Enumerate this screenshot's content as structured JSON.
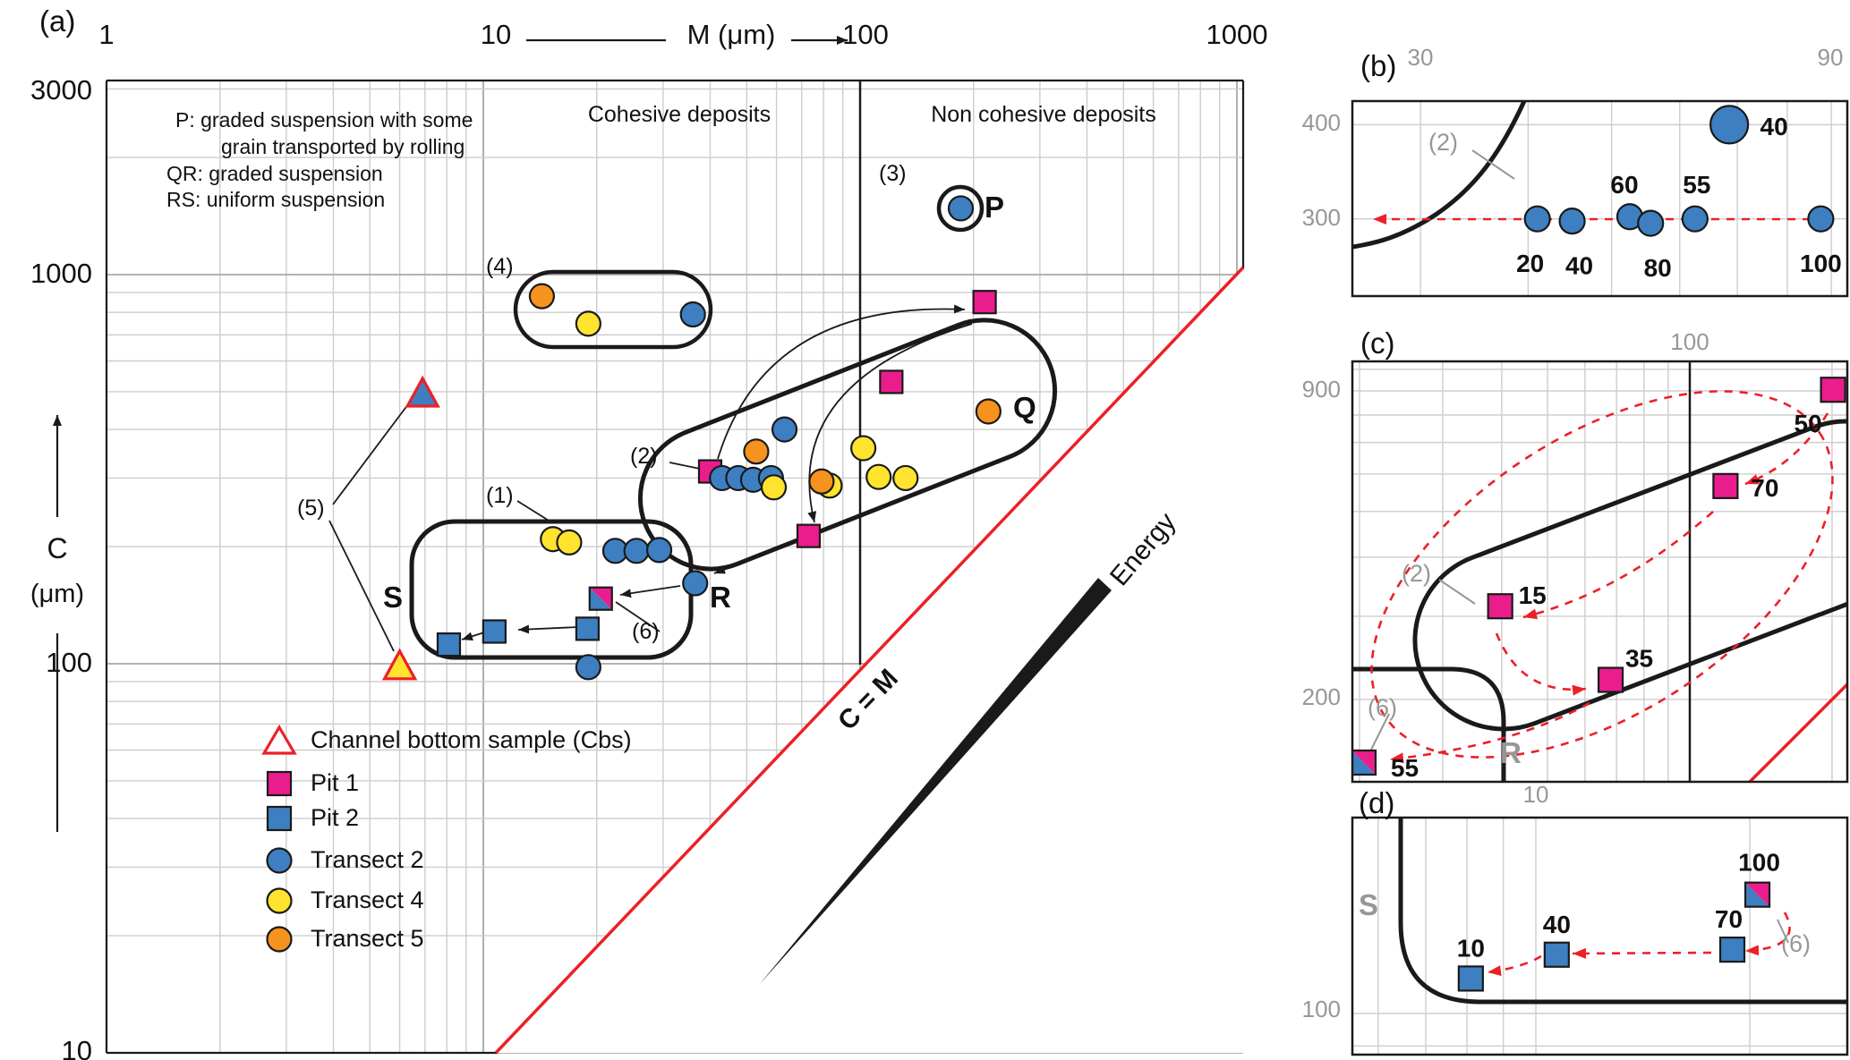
{
  "chart_data": [
    {
      "panel": "a",
      "type": "scatter",
      "xscale": "log",
      "yscale": "log",
      "xlabel": "M (μm)",
      "ylabel": "C (μm)",
      "xlim": [
        1,
        1040
      ],
      "ylim": [
        10,
        3160
      ],
      "x_ticks": [
        1,
        10,
        100,
        1000
      ],
      "y_ticks": [
        3000,
        1000,
        100,
        10
      ],
      "reference_line": {
        "label": "C = M"
      },
      "cohesive_boundary_M": 100,
      "series": [
        {
          "name": "Pit 1",
          "marker": "square",
          "color": "#EA1D8D",
          "points_MC": [
            [
              214,
              850
            ],
            [
              121,
              530
            ],
            [
              40,
              312
            ],
            [
              73,
              213
            ]
          ]
        },
        {
          "name": "Pit 1 + Pit 2 overlap",
          "marker": "square-split",
          "colors": [
            "#EA1D8D",
            "#3D7FC1"
          ],
          "points_MC": [
            [
              20.5,
              147
            ]
          ]
        },
        {
          "name": "Pit 2",
          "marker": "square",
          "color": "#3D7FC1",
          "points_MC": [
            [
              8.1,
              112
            ],
            [
              10.7,
              121
            ],
            [
              18.9,
              123
            ]
          ]
        },
        {
          "name": "Transect 2",
          "marker": "circle",
          "color": "#3D7FC1",
          "points_MC": [
            [
              185,
              1480
            ],
            [
              36,
              790
            ],
            [
              63,
              400
            ],
            [
              43,
              300
            ],
            [
              47.5,
              300
            ],
            [
              52,
              297
            ],
            [
              58,
              300
            ],
            [
              22.4,
              195
            ],
            [
              25.5,
              195
            ],
            [
              29.3,
              196
            ],
            [
              36.5,
              161
            ],
            [
              19,
              98
            ]
          ]
        },
        {
          "name": "Transect 4",
          "marker": "circle",
          "color": "#FFE32E",
          "points_MC": [
            [
              19,
              748
            ],
            [
              102,
              358
            ],
            [
              112,
              302
            ],
            [
              132,
              300
            ],
            [
              83,
              287
            ],
            [
              59,
              284
            ],
            [
              15.3,
              209
            ],
            [
              16.9,
              205
            ]
          ]
        },
        {
          "name": "Transect 5",
          "marker": "circle",
          "color": "#F6921E",
          "points_MC": [
            [
              14.3,
              880
            ],
            [
              219,
              445
            ],
            [
              53,
              351
            ],
            [
              79,
              294
            ]
          ]
        },
        {
          "name": "Channel bottom sample (Cbs)",
          "marker": "triangle",
          "stroke": "#EC2027",
          "points": [
            {
              "M": 6.9,
              "C": 492,
              "fill": "#3D7FC1"
            },
            {
              "M": 6.0,
              "C": 98,
              "fill": "#FFE32E"
            }
          ]
        }
      ]
    },
    {
      "panel": "b",
      "type": "scatter",
      "xscale": "log",
      "yscale": "log",
      "xlim": [
        25,
        94
      ],
      "ylim": [
        237,
        430
      ],
      "x_ticks": [
        30,
        90
      ],
      "y_ticks": [
        400,
        300
      ],
      "series": [
        {
          "name": "Transect 2",
          "marker": "circle",
          "color": "#3D7FC1",
          "points": [
            {
              "M": 41,
              "C": 300,
              "label": "20",
              "dx": -8,
              "dy": 50
            },
            {
              "M": 45,
              "C": 298,
              "label": "40",
              "dx": 8,
              "dy": 50
            },
            {
              "M": 52.5,
              "C": 302,
              "label": "60",
              "dx": -6,
              "dy": -36
            },
            {
              "M": 55.5,
              "C": 296,
              "label": "80",
              "dx": 8,
              "dy": 50
            },
            {
              "M": 62.5,
              "C": 300,
              "label": "55",
              "dx": 2,
              "dy": -38
            },
            {
              "M": 87.5,
              "C": 300,
              "label": "100",
              "dx": 0,
              "dy": 50
            },
            {
              "M": 68.5,
              "C": 400,
              "label": "40",
              "dx": 50,
              "dy": 2,
              "r": 21
            }
          ]
        }
      ]
    },
    {
      "panel": "c",
      "type": "scatter",
      "xscale": "log",
      "yscale": "log",
      "xlim": [
        19.3,
        215
      ],
      "ylim": [
        134,
        1040
      ],
      "x_ticks": [
        100
      ],
      "y_ticks": [
        900,
        200
      ],
      "series": [
        {
          "name": "Pit 1",
          "marker": "square",
          "color": "#EA1D8D",
          "points": [
            {
              "M": 201,
              "C": 905,
              "label": "50",
              "dx": -28,
              "dy": 38
            },
            {
              "M": 119,
              "C": 566,
              "label": "70",
              "dx": 44,
              "dy": 2
            },
            {
              "M": 39.7,
              "C": 315,
              "label": "15",
              "dx": 36,
              "dy": -12
            },
            {
              "M": 68,
              "C": 220,
              "label": "35",
              "dx": 32,
              "dy": -24
            },
            {
              "M": 20.4,
              "C": 147,
              "label": "55",
              "dx": 46,
              "dy": 6,
              "split": true
            }
          ]
        }
      ]
    },
    {
      "panel": "d",
      "type": "scatter",
      "xscale": "log",
      "yscale": "log",
      "xlim": [
        5.5,
        27.4
      ],
      "ylim": [
        87.5,
        189
      ],
      "x_ticks": [
        10
      ],
      "y_ticks": [
        100
      ],
      "series": [
        {
          "name": "Pit 2",
          "marker": "square",
          "color": "#3D7FC1",
          "points": [
            {
              "M": 8.1,
              "C": 112,
              "label": "10",
              "dx": 0,
              "dy": -34
            },
            {
              "M": 10.7,
              "C": 121,
              "label": "40",
              "dx": 0,
              "dy": -34
            },
            {
              "M": 18.9,
              "C": 123,
              "label": "70",
              "dx": -4,
              "dy": -34
            },
            {
              "M": 20.5,
              "C": 147,
              "label": "100",
              "dx": 2,
              "dy": -36,
              "split": true
            }
          ]
        }
      ]
    }
  ],
  "colors": {
    "pit1": "#EA1D8D",
    "pit2": "#3D7FC1",
    "transect2": "#3D7FC1",
    "transect4": "#FFE32E",
    "transect5": "#F6921E",
    "red": "#EC2027",
    "black": "#1A1A1A",
    "grid_minor": "#CDCDCD",
    "grid_decade": "#A8A8A8",
    "gray_label": "#979797"
  },
  "ui": {
    "panel_labels": {
      "a": "(a)",
      "b": "(b)",
      "c": "(c)",
      "d": "(d)"
    },
    "notes": {
      "line1": "P: graded suspension with some",
      "line2": "grain transported by rolling",
      "line3": "QR: graded suspension",
      "line4": "RS: uniform suspension"
    },
    "deposits": {
      "cohesive": "Cohesive deposits",
      "non_cohesive": "Non cohesive deposits"
    },
    "axis": {
      "x_tick_1": "1",
      "x_tick_10": "10",
      "x_tick_100": "100",
      "x_tick_1000": "1000",
      "x_label": "M (μm)",
      "y_tick_3000": "3000",
      "y_tick_1000": "1000",
      "y_tick_100": "100",
      "y_tick_10": "10",
      "y_label_c": "C",
      "y_label_um": "(μm)"
    },
    "regions": {
      "p": "P",
      "q": "Q",
      "r": "R",
      "s": "S"
    },
    "annotations": {
      "n1": "(1)",
      "n2": "(2)",
      "n3": "(3)",
      "n4": "(4)",
      "n5": "(5)",
      "n6": "(6)"
    },
    "cm_label": "C = M",
    "energy_label": "Energy",
    "legend": {
      "cbs": "Channel bottom sample (Cbs)",
      "pit1": "Pit 1",
      "pit2": "Pit 2",
      "t2": "Transect 2",
      "t4": "Transect 4",
      "t5": "Transect 5"
    },
    "inset_b": {
      "tick_30": "30",
      "tick_90": "90",
      "tick_400": "400",
      "tick_300": "300",
      "n2": "(2)"
    },
    "inset_c": {
      "tick_100": "100",
      "tick_900": "900",
      "tick_200": "200",
      "n2": "(2)",
      "n6": "(6)",
      "r": "R"
    },
    "inset_d": {
      "tick_10": "10",
      "tick_100": "100",
      "n6": "(6)",
      "s": "S"
    }
  }
}
